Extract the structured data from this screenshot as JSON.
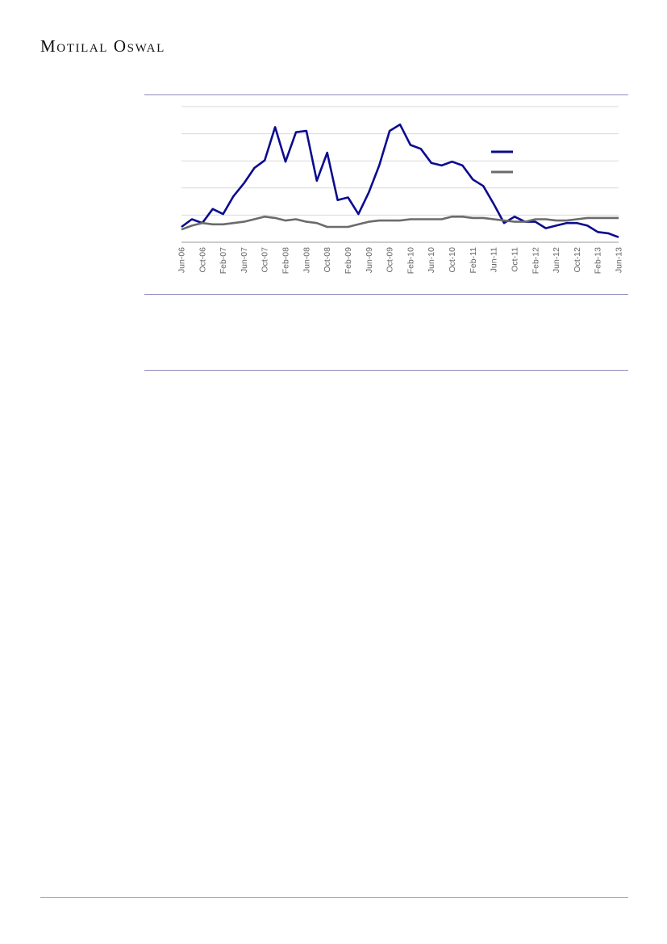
{
  "header": {
    "brand": "Motilal Oswal"
  },
  "chart_data": {
    "type": "line",
    "title": "",
    "xlabel": "",
    "ylabel": "",
    "grid": true,
    "legend_position": "upper-right",
    "x": [
      "Jun-06",
      "Aug-06",
      "Oct-06",
      "Dec-06",
      "Feb-07",
      "Apr-07",
      "Jun-07",
      "Aug-07",
      "Oct-07",
      "Dec-07",
      "Feb-08",
      "Apr-08",
      "Jun-08",
      "Aug-08",
      "Oct-08",
      "Dec-08",
      "Feb-09",
      "Apr-09",
      "Jun-09",
      "Aug-09",
      "Oct-09",
      "Dec-09",
      "Feb-10",
      "Apr-10",
      "Jun-10",
      "Aug-10",
      "Oct-10",
      "Dec-10",
      "Feb-11",
      "Apr-11",
      "Jun-11",
      "Aug-11",
      "Oct-11",
      "Dec-11",
      "Feb-12",
      "Apr-12",
      "Jun-12",
      "Aug-12",
      "Oct-12",
      "Dec-12",
      "Feb-13",
      "Apr-13",
      "Jun-13"
    ],
    "tick_labels": [
      "Jun-06",
      "Oct-06",
      "Feb-07",
      "Jun-07",
      "Oct-07",
      "Feb-08",
      "Jun-08",
      "Oct-08",
      "Feb-09",
      "Jun-09",
      "Oct-09",
      "Feb-10",
      "Jun-10",
      "Oct-10",
      "Feb-11",
      "Jun-11",
      "Oct-11",
      "Feb-12",
      "Jun-12",
      "Oct-12",
      "Feb-13",
      "Jun-13"
    ],
    "series": [
      {
        "color": "#0b0b8f",
        "values": [
          0.2,
          0.8,
          0.5,
          1.6,
          1.2,
          2.6,
          3.6,
          4.8,
          5.4,
          8.0,
          5.3,
          7.6,
          7.7,
          3.8,
          6.0,
          2.3,
          2.5,
          1.2,
          2.9,
          5.0,
          7.7,
          8.2,
          6.6,
          6.3,
          5.2,
          5.0,
          5.3,
          5.0,
          3.9,
          3.4,
          2.0,
          0.5,
          1.0,
          0.6,
          0.6,
          0.1,
          0.3,
          0.5,
          0.5,
          0.3,
          -0.2,
          -0.3,
          -0.6
        ]
      },
      {
        "color": "#6b6b6b",
        "values": [
          0.0,
          0.3,
          0.5,
          0.4,
          0.4,
          0.5,
          0.6,
          0.8,
          1.0,
          0.9,
          0.7,
          0.8,
          0.6,
          0.5,
          0.2,
          0.2,
          0.2,
          0.4,
          0.6,
          0.7,
          0.7,
          0.7,
          0.8,
          0.8,
          0.8,
          0.8,
          1.0,
          1.0,
          0.9,
          0.9,
          0.8,
          0.7,
          0.6,
          0.6,
          0.8,
          0.8,
          0.7,
          0.7,
          0.8,
          0.9,
          0.9,
          0.9,
          0.9
        ]
      }
    ],
    "ylim": [
      -1.0,
      9.6
    ]
  }
}
